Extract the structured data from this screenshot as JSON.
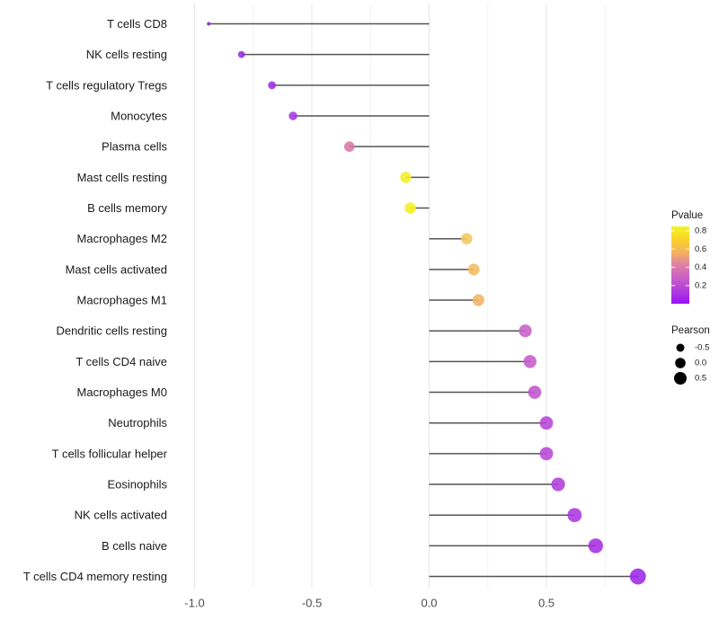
{
  "chart_data": {
    "type": "scatter",
    "subtype": "lollipop",
    "title": "",
    "xlabel": "",
    "ylabel": "",
    "grid": "vertical-only",
    "x_axis": {
      "tick_values": [
        -1.0,
        -0.5,
        0.0,
        0.5
      ],
      "tick_labels": [
        "-1.0",
        "-0.5",
        "0.0",
        "0.5"
      ],
      "minor_gridlines": [
        -0.75,
        -0.25,
        0.25,
        0.75
      ],
      "xlim": [
        -1.09,
        1.0
      ]
    },
    "points": [
      {
        "label": "T cells CD8",
        "pearson": -0.94,
        "pvalue_approx": 0.02,
        "color": "#8B26CE",
        "radius": 2.0
      },
      {
        "label": "NK cells resting",
        "pearson": -0.8,
        "pvalue_approx": 0.05,
        "color": "#992BE0",
        "radius": 3.9
      },
      {
        "label": "T cells regulatory  Tregs",
        "pearson": -0.67,
        "pvalue_approx": 0.07,
        "color": "#9C2EE2",
        "radius": 4.4
      },
      {
        "label": "Monocytes",
        "pearson": -0.58,
        "pvalue_approx": 0.1,
        "color": "#A438E1",
        "radius": 4.8
      },
      {
        "label": "Plasma cells",
        "pearson": -0.34,
        "pvalue_approx": 0.45,
        "color": "#D878A8",
        "radius": 5.8
      },
      {
        "label": "Mast cells resting",
        "pearson": -0.1,
        "pvalue_approx": 0.8,
        "color": "#F2EE25",
        "radius": 6.2
      },
      {
        "label": "B cells memory",
        "pearson": -0.08,
        "pvalue_approx": 0.8,
        "color": "#F4F021",
        "radius": 6.3
      },
      {
        "label": "Macrophages M2",
        "pearson": 0.16,
        "pvalue_approx": 0.6,
        "color": "#F2C75F",
        "radius": 6.3
      },
      {
        "label": "Mast cells activated",
        "pearson": 0.19,
        "pvalue_approx": 0.58,
        "color": "#F1BC5D",
        "radius": 6.5
      },
      {
        "label": "Macrophages M1",
        "pearson": 0.21,
        "pvalue_approx": 0.55,
        "color": "#F1B464",
        "radius": 6.6
      },
      {
        "label": "Dendritic cells resting",
        "pearson": 0.41,
        "pvalue_approx": 0.28,
        "color": "#C75FC8",
        "radius": 7.1
      },
      {
        "label": "T cells CD4 naive",
        "pearson": 0.43,
        "pvalue_approx": 0.27,
        "color": "#C55BCB",
        "radius": 7.2
      },
      {
        "label": "Macrophages M0",
        "pearson": 0.45,
        "pvalue_approx": 0.26,
        "color": "#C254CE",
        "radius": 7.3
      },
      {
        "label": "Neutrophils",
        "pearson": 0.5,
        "pvalue_approx": 0.2,
        "color": "#B846D7",
        "radius": 7.4
      },
      {
        "label": "T cells follicular helper",
        "pearson": 0.5,
        "pvalue_approx": 0.2,
        "color": "#B948D6",
        "radius": 7.4
      },
      {
        "label": "Eosinophils",
        "pearson": 0.55,
        "pvalue_approx": 0.17,
        "color": "#B13EDC",
        "radius": 7.6
      },
      {
        "label": "NK cells activated",
        "pearson": 0.62,
        "pvalue_approx": 0.12,
        "color": "#AB37DF",
        "radius": 7.9
      },
      {
        "label": "B cells naive",
        "pearson": 0.71,
        "pvalue_approx": 0.08,
        "color": "#A52FE2",
        "radius": 8.2
      },
      {
        "label": "T cells CD4 memory resting",
        "pearson": 0.89,
        "pvalue_approx": 0.02,
        "color": "#9C27E6",
        "radius": 8.9
      }
    ],
    "legend": {
      "position": "right",
      "pvalue": {
        "title": "Pvalue",
        "tick_labels": [
          "0.8",
          "0.6",
          "0.4",
          "0.2"
        ],
        "tick_values": [
          0.8,
          0.6,
          0.4,
          0.2
        ],
        "bar_range": [
          0.85,
          0.0
        ],
        "gradient_stops": [
          {
            "offset": 0.0,
            "color": "#F4F623"
          },
          {
            "offset": 0.176,
            "color": "#FAD02B"
          },
          {
            "offset": 0.353,
            "color": "#F2AE61"
          },
          {
            "offset": 0.47,
            "color": "#E2879F"
          },
          {
            "offset": 0.647,
            "color": "#CC63C3"
          },
          {
            "offset": 0.824,
            "color": "#B23FDB"
          },
          {
            "offset": 1.0,
            "color": "#9A10F6"
          }
        ]
      },
      "pearson": {
        "title": "Pearson",
        "items": [
          {
            "label": "-0.5",
            "radius": 4.5
          },
          {
            "label": "0.0",
            "radius": 5.8
          },
          {
            "label": "0.5",
            "radius": 7.0
          }
        ],
        "dot_color": "#000000"
      }
    },
    "style": {
      "background": "#ffffff",
      "stem_color": "#545454",
      "grid_major_color": "#e5e5e5",
      "grid_minor_color": "#f2f2f2",
      "label_text_color": "#1a1a1a",
      "axis_text_color": "#4d4d4d",
      "legend_text_color": "#1a1a1a"
    }
  }
}
